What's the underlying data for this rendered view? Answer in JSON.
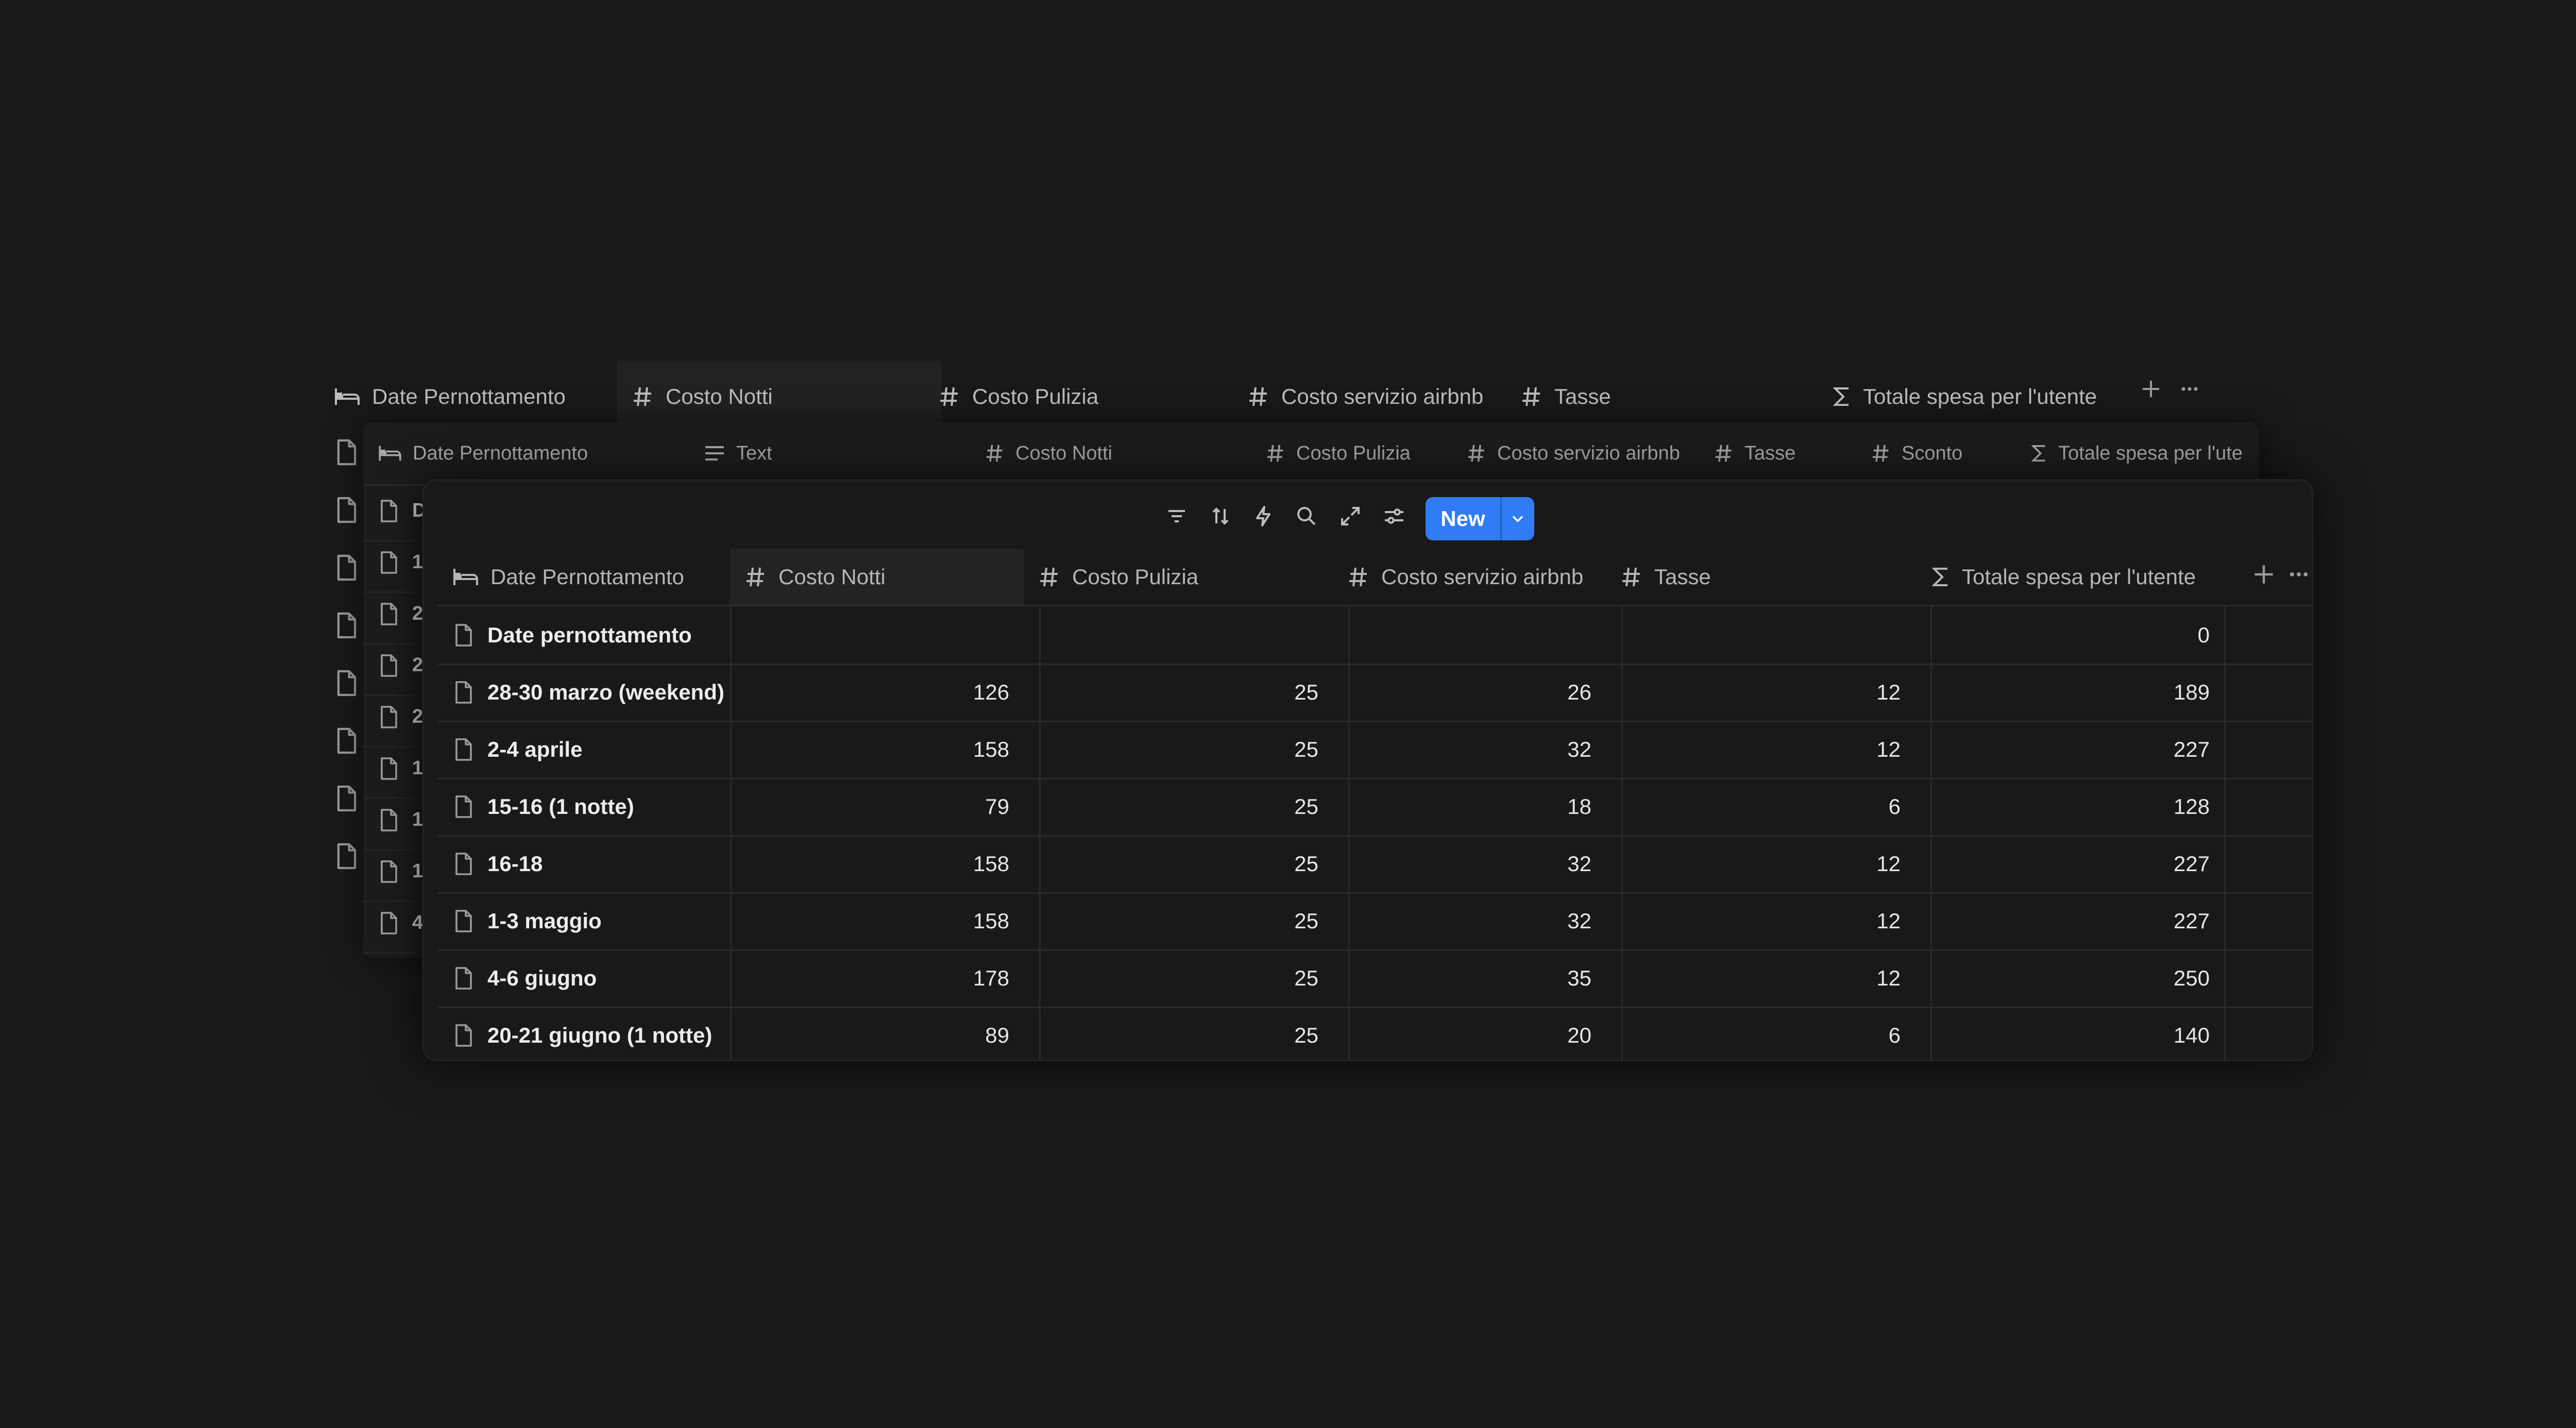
{
  "colors": {
    "background": "#191919",
    "accent": "#2f7cf6",
    "text": "#e6e6e6",
    "muted": "#b5b5b5"
  },
  "back_layer": {
    "columns": [
      {
        "icon": "bed-icon",
        "label": "Date Pernottamento"
      },
      {
        "icon": "hash-icon",
        "label": "Costo Notti"
      },
      {
        "icon": "hash-icon",
        "label": "Costo Pulizia"
      },
      {
        "icon": "hash-icon",
        "label": "Costo servizio airbnb"
      },
      {
        "icon": "hash-icon",
        "label": "Tasse"
      },
      {
        "icon": "sigma-icon",
        "label": "Totale spesa per l'utente"
      }
    ],
    "row_count": 8
  },
  "middle_layer": {
    "columns": [
      {
        "icon": "bed-icon",
        "label": "Date Pernottamento"
      },
      {
        "icon": "lines-icon",
        "label": "Text"
      },
      {
        "icon": "hash-icon",
        "label": "Costo Notti"
      },
      {
        "icon": "hash-icon",
        "label": "Costo Pulizia"
      },
      {
        "icon": "hash-icon",
        "label": "Costo servizio airbnb"
      },
      {
        "icon": "hash-icon",
        "label": "Tasse"
      },
      {
        "icon": "hash-icon",
        "label": "Sconto"
      },
      {
        "icon": "sigma-icon",
        "label": "Totale spesa per l'ute"
      }
    ],
    "row_initials": [
      "D",
      "1",
      "2",
      "2",
      "2",
      "1",
      "1",
      "1",
      "4"
    ]
  },
  "toolbar": {
    "icons": [
      "filter-icon",
      "sort-icon",
      "lightning-icon",
      "search-icon",
      "expand-icon",
      "settings-icon"
    ],
    "new_label": "New"
  },
  "table": {
    "columns": [
      {
        "icon": "bed-icon",
        "label": "Date Pernottamento"
      },
      {
        "icon": "hash-icon",
        "label": "Costo Notti"
      },
      {
        "icon": "hash-icon",
        "label": "Costo Pulizia"
      },
      {
        "icon": "hash-icon",
        "label": "Costo servizio airbnb"
      },
      {
        "icon": "hash-icon",
        "label": "Tasse"
      },
      {
        "icon": "sigma-icon",
        "label": "Totale spesa per l'utente"
      }
    ],
    "rows": [
      {
        "name": "Date pernottamento",
        "notti": "",
        "pulizia": "",
        "servizio": "",
        "tasse": "",
        "totale": "0"
      },
      {
        "name": "28-30 marzo (weekend)",
        "notti": "126",
        "pulizia": "25",
        "servizio": "26",
        "tasse": "12",
        "totale": "189"
      },
      {
        "name": "2-4 aprile",
        "notti": "158",
        "pulizia": "25",
        "servizio": "32",
        "tasse": "12",
        "totale": "227"
      },
      {
        "name": "15-16 (1 notte)",
        "notti": "79",
        "pulizia": "25",
        "servizio": "18",
        "tasse": "6",
        "totale": "128"
      },
      {
        "name": "16-18",
        "notti": "158",
        "pulizia": "25",
        "servizio": "32",
        "tasse": "12",
        "totale": "227"
      },
      {
        "name": "1-3 maggio",
        "notti": "158",
        "pulizia": "25",
        "servizio": "32",
        "tasse": "12",
        "totale": "227"
      },
      {
        "name": "4-6 giugno",
        "notti": "178",
        "pulizia": "25",
        "servizio": "35",
        "tasse": "12",
        "totale": "250"
      },
      {
        "name": "20-21 giugno (1 notte)",
        "notti": "89",
        "pulizia": "25",
        "servizio": "20",
        "tasse": "6",
        "totale": "140"
      }
    ]
  }
}
